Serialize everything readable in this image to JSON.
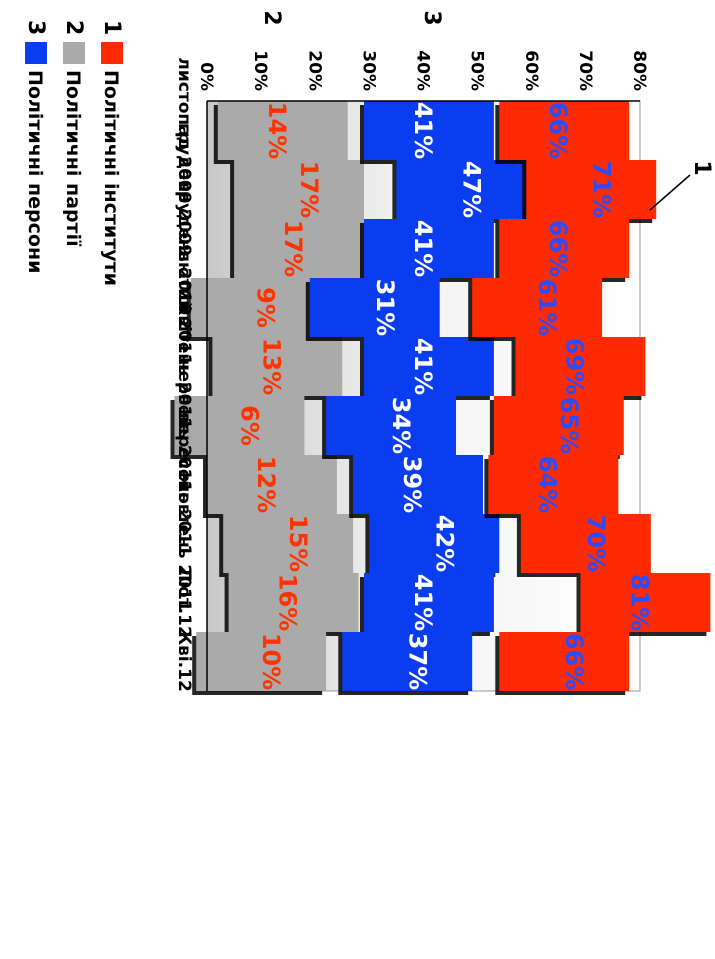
{
  "chart_data": {
    "type": "area",
    "categories": [
      "листопад 2009",
      "грудень 2009",
      "грудень 2010",
      "лютий 2011",
      "квітень 2011",
      "червень 2011",
      "вересень 2011",
      "жовтень 2011",
      "Лют.12",
      "Кві.12"
    ],
    "ylim": [
      0,
      80
    ],
    "y_ticks": [
      "0%",
      "10%",
      "20%",
      "30%",
      "40%",
      "50%",
      "60%",
      "70%",
      "80%"
    ],
    "grid": false,
    "legend_position": "bottom",
    "series": [
      {
        "name": "Політичні інститути",
        "number": "1",
        "color": "#ff2a00",
        "label_color": "#2a4cff",
        "values": [
          66,
          71,
          66,
          61,
          69,
          65,
          64,
          70,
          81,
          66
        ],
        "labels": [
          "66%",
          "71%",
          "66%",
          "61%",
          "69%",
          "65%",
          "64%",
          "70%",
          "81%",
          "66%"
        ]
      },
      {
        "name": "Політичні партії",
        "number": "2",
        "color": "#aaaaaa",
        "label_color": "#ff3300",
        "values": [
          14,
          17,
          17,
          9,
          13,
          6,
          12,
          15,
          16,
          10
        ],
        "labels": [
          "14%",
          "17%",
          "17%",
          "9%",
          "13%",
          "6%",
          "12%",
          "15%",
          "16%",
          "10%"
        ]
      },
      {
        "name": "Політичні персони",
        "number": "3",
        "color": "#0a3cf0",
        "label_color": "#ffffff",
        "values": [
          41,
          47,
          41,
          31,
          41,
          34,
          39,
          42,
          41,
          37
        ],
        "labels": [
          "41%",
          "47%",
          "41%",
          "31%",
          "41%",
          "34%",
          "39%",
          "42%",
          "41%",
          "37%"
        ]
      }
    ]
  }
}
